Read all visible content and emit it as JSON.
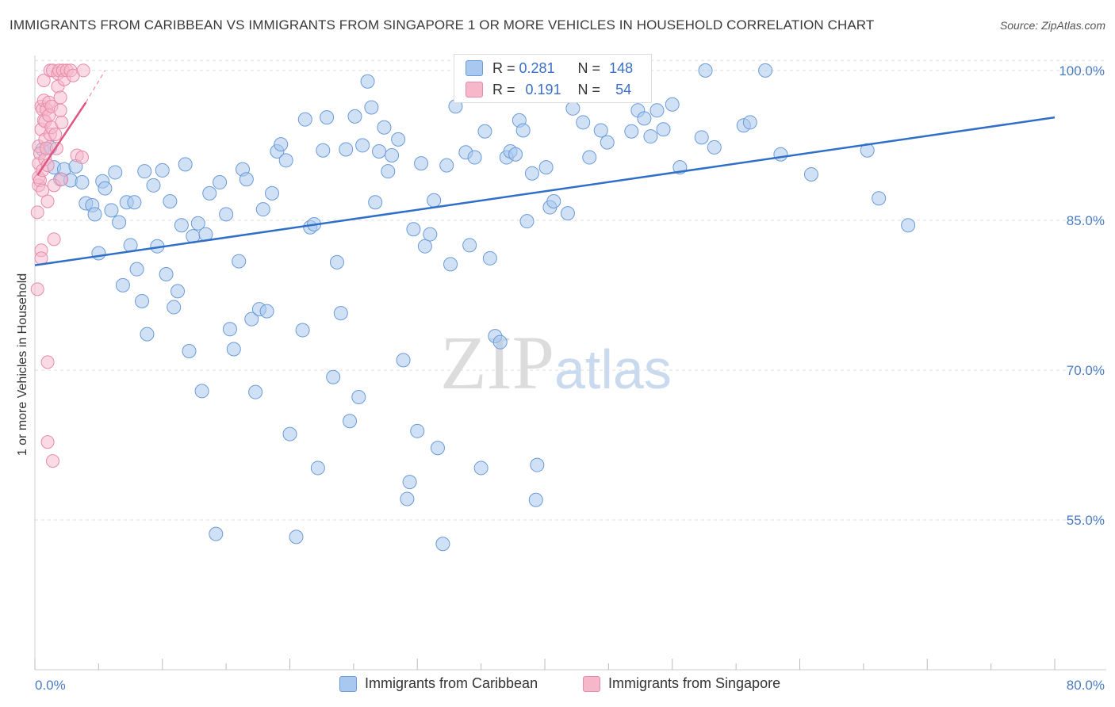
{
  "title": "IMMIGRANTS FROM CARIBBEAN VS IMMIGRANTS FROM SINGAPORE 1 OR MORE VEHICLES IN HOUSEHOLD CORRELATION CHART",
  "source": "Source: ZipAtlas.com",
  "watermark": {
    "zip": "ZIP",
    "atlas": "atlas"
  },
  "legend_top": {
    "rows": [
      {
        "r_label": "R =",
        "r_value": "0.281",
        "n_label": "N =",
        "n_value": "148"
      },
      {
        "r_label": "R =",
        "r_value": "0.191",
        "n_label": "N =",
        "n_value": "54"
      }
    ]
  },
  "chart_data": {
    "type": "scatter",
    "title": "IMMIGRANTS FROM CARIBBEAN VS IMMIGRANTS FROM SINGAPORE 1 OR MORE VEHICLES IN HOUSEHOLD CORRELATION CHART",
    "xlabel": "",
    "ylabel": "1 or more Vehicles in Household",
    "xlim": [
      0,
      80
    ],
    "ylim": [
      40,
      101.5
    ],
    "x_tick_labels": [
      "0.0%",
      "80.0%"
    ],
    "y_tick_values": [
      55,
      70,
      85,
      100
    ],
    "y_tick_labels": [
      "55.0%",
      "70.0%",
      "85.0%",
      "100.0%"
    ],
    "grid": true,
    "legend_placement": "bottom",
    "colors": {
      "caribbean_fill": "#a9c8ef",
      "caribbean_stroke": "#6b9bd8",
      "caribbean_line": "#2f6fc8",
      "singapore_fill": "#f6b7cb",
      "singapore_stroke": "#e98aa8",
      "singapore_line": "#e0557f",
      "tick_text": "#4a7cc4",
      "grid": "#dddddd"
    },
    "series": [
      {
        "name": "Immigrants from Caribbean",
        "trend": {
          "x": [
            0,
            80
          ],
          "y": [
            80.5,
            95.3
          ]
        },
        "points": [
          [
            0.6,
            92.1
          ],
          [
            1.2,
            92.3
          ],
          [
            1.5,
            90.3
          ],
          [
            2.0,
            89.1
          ],
          [
            2.3,
            90.1
          ],
          [
            2.8,
            89.0
          ],
          [
            3.2,
            90.4
          ],
          [
            3.7,
            88.8
          ],
          [
            4.0,
            86.7
          ],
          [
            4.5,
            86.5
          ],
          [
            4.7,
            85.6
          ],
          [
            5.0,
            81.7
          ],
          [
            5.3,
            88.9
          ],
          [
            5.5,
            88.2
          ],
          [
            6.0,
            86.0
          ],
          [
            6.3,
            89.8
          ],
          [
            6.6,
            84.8
          ],
          [
            6.9,
            78.5
          ],
          [
            7.2,
            86.8
          ],
          [
            7.5,
            82.5
          ],
          [
            7.8,
            86.8
          ],
          [
            8.0,
            80.1
          ],
          [
            8.4,
            76.9
          ],
          [
            8.6,
            89.9
          ],
          [
            8.8,
            73.6
          ],
          [
            9.3,
            88.5
          ],
          [
            9.6,
            82.4
          ],
          [
            10.0,
            90.0
          ],
          [
            10.3,
            79.6
          ],
          [
            10.6,
            86.9
          ],
          [
            10.9,
            76.3
          ],
          [
            11.2,
            77.9
          ],
          [
            11.5,
            84.5
          ],
          [
            11.8,
            90.6
          ],
          [
            12.1,
            71.9
          ],
          [
            12.4,
            83.4
          ],
          [
            12.8,
            84.7
          ],
          [
            13.1,
            67.9
          ],
          [
            13.4,
            83.6
          ],
          [
            13.7,
            87.7
          ],
          [
            14.2,
            53.6
          ],
          [
            14.5,
            88.8
          ],
          [
            15.0,
            85.6
          ],
          [
            15.3,
            74.1
          ],
          [
            15.6,
            72.1
          ],
          [
            16.0,
            80.9
          ],
          [
            16.3,
            90.1
          ],
          [
            16.6,
            89.1
          ],
          [
            17.0,
            75.1
          ],
          [
            17.3,
            67.8
          ],
          [
            17.6,
            76.1
          ],
          [
            17.9,
            86.1
          ],
          [
            18.2,
            75.9
          ],
          [
            18.6,
            87.7
          ],
          [
            19.0,
            91.9
          ],
          [
            19.3,
            92.6
          ],
          [
            19.7,
            91.0
          ],
          [
            20.0,
            63.6
          ],
          [
            20.5,
            53.3
          ],
          [
            21.0,
            74.0
          ],
          [
            21.2,
            95.1
          ],
          [
            21.6,
            84.3
          ],
          [
            21.9,
            84.6
          ],
          [
            22.2,
            60.2
          ],
          [
            22.6,
            92.0
          ],
          [
            22.9,
            95.3
          ],
          [
            23.4,
            69.3
          ],
          [
            23.7,
            80.8
          ],
          [
            24.0,
            75.7
          ],
          [
            24.4,
            92.1
          ],
          [
            24.7,
            64.9
          ],
          [
            25.1,
            95.4
          ],
          [
            25.4,
            67.3
          ],
          [
            25.7,
            92.5
          ],
          [
            26.1,
            98.9
          ],
          [
            26.4,
            96.3
          ],
          [
            26.7,
            86.8
          ],
          [
            27.0,
            91.9
          ],
          [
            27.4,
            94.3
          ],
          [
            27.7,
            89.9
          ],
          [
            28.0,
            91.5
          ],
          [
            28.5,
            93.1
          ],
          [
            28.9,
            71.0
          ],
          [
            29.2,
            57.1
          ],
          [
            29.4,
            58.8
          ],
          [
            29.7,
            84.1
          ],
          [
            30.0,
            63.9
          ],
          [
            30.3,
            90.7
          ],
          [
            30.6,
            82.4
          ],
          [
            31.0,
            83.6
          ],
          [
            31.3,
            87.0
          ],
          [
            31.6,
            62.2
          ],
          [
            32.0,
            52.6
          ],
          [
            32.3,
            90.5
          ],
          [
            32.6,
            80.6
          ],
          [
            33.0,
            96.4
          ],
          [
            33.8,
            91.8
          ],
          [
            34.1,
            82.5
          ],
          [
            34.5,
            91.3
          ],
          [
            35.0,
            60.2
          ],
          [
            35.3,
            93.9
          ],
          [
            35.7,
            81.2
          ],
          [
            36.1,
            73.4
          ],
          [
            36.5,
            72.8
          ],
          [
            37.0,
            91.3
          ],
          [
            37.3,
            91.9
          ],
          [
            37.7,
            91.6
          ],
          [
            38.0,
            95.0
          ],
          [
            38.3,
            94.0
          ],
          [
            38.6,
            84.9
          ],
          [
            39.0,
            89.7
          ],
          [
            39.3,
            57.0
          ],
          [
            40.1,
            90.3
          ],
          [
            40.4,
            86.3
          ],
          [
            40.7,
            86.9
          ],
          [
            41.5,
            98.2
          ],
          [
            41.8,
            85.7
          ],
          [
            42.2,
            96.2
          ],
          [
            43.0,
            94.8
          ],
          [
            43.5,
            91.3
          ],
          [
            43.8,
            98.3
          ],
          [
            44.4,
            94.0
          ],
          [
            44.9,
            92.8
          ],
          [
            45.2,
            100.3
          ],
          [
            46.8,
            93.9
          ],
          [
            47.3,
            96.0
          ],
          [
            47.8,
            95.2
          ],
          [
            48.3,
            93.4
          ],
          [
            48.8,
            96.0
          ],
          [
            49.3,
            94.1
          ],
          [
            50.0,
            96.6
          ],
          [
            50.6,
            90.3
          ],
          [
            52.3,
            93.3
          ],
          [
            52.6,
            100.0
          ],
          [
            53.3,
            92.3
          ],
          [
            55.6,
            94.5
          ],
          [
            56.1,
            94.8
          ],
          [
            57.3,
            100.0
          ],
          [
            58.5,
            91.6
          ],
          [
            60.9,
            89.6
          ],
          [
            65.3,
            92.0
          ],
          [
            66.2,
            87.2
          ],
          [
            68.5,
            84.5
          ],
          [
            39.4,
            60.5
          ]
        ]
      },
      {
        "name": "Immigrants from Singapore",
        "trend": {
          "x": [
            0.2,
            4.0
          ],
          "y": [
            89.5,
            96.8
          ]
        },
        "trend_dashed": {
          "x": [
            4.0,
            5.5
          ],
          "y": [
            96.8,
            100.0
          ]
        },
        "points": [
          [
            0.2,
            78.1
          ],
          [
            0.2,
            85.8
          ],
          [
            0.3,
            88.5
          ],
          [
            0.3,
            89.3
          ],
          [
            0.3,
            90.7
          ],
          [
            0.3,
            92.4
          ],
          [
            0.4,
            89.0
          ],
          [
            0.4,
            91.7
          ],
          [
            0.5,
            94.1
          ],
          [
            0.5,
            96.4
          ],
          [
            0.5,
            82.0
          ],
          [
            0.5,
            81.2
          ],
          [
            0.6,
            88.0
          ],
          [
            0.6,
            90.0
          ],
          [
            0.6,
            96.1
          ],
          [
            0.7,
            95.0
          ],
          [
            0.7,
            97.0
          ],
          [
            0.7,
            99.0
          ],
          [
            0.8,
            91.1
          ],
          [
            0.8,
            93.1
          ],
          [
            0.8,
            94.9
          ],
          [
            0.9,
            96.1
          ],
          [
            0.9,
            92.2
          ],
          [
            1.0,
            90.5
          ],
          [
            1.0,
            86.9
          ],
          [
            1.0,
            70.8
          ],
          [
            1.0,
            62.8
          ],
          [
            1.1,
            95.5
          ],
          [
            1.1,
            96.8
          ],
          [
            1.2,
            100.0
          ],
          [
            1.2,
            93.6
          ],
          [
            1.3,
            96.4
          ],
          [
            1.3,
            94.3
          ],
          [
            1.4,
            100.0
          ],
          [
            1.4,
            60.9
          ],
          [
            1.5,
            83.1
          ],
          [
            1.5,
            88.5
          ],
          [
            1.6,
            93.6
          ],
          [
            1.7,
            92.2
          ],
          [
            1.8,
            99.7
          ],
          [
            1.8,
            98.4
          ],
          [
            1.9,
            100.0
          ],
          [
            2.0,
            97.3
          ],
          [
            2.0,
            96.0
          ],
          [
            2.1,
            94.8
          ],
          [
            2.1,
            89.1
          ],
          [
            2.2,
            100.0
          ],
          [
            2.3,
            99.1
          ],
          [
            2.5,
            100.0
          ],
          [
            2.8,
            100.0
          ],
          [
            3.0,
            99.5
          ],
          [
            3.3,
            91.5
          ],
          [
            3.7,
            91.3
          ],
          [
            3.8,
            100.0
          ]
        ]
      }
    ]
  }
}
